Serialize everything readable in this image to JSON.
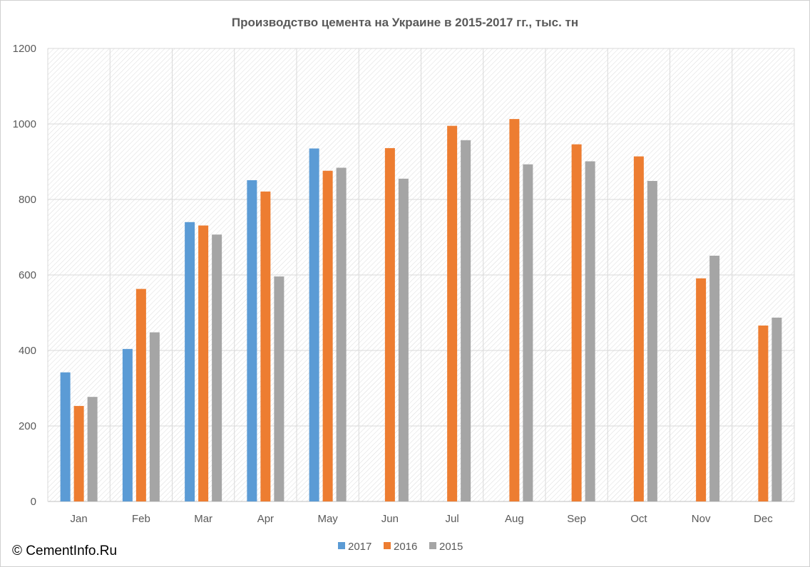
{
  "chart_data": {
    "type": "bar",
    "title": "Производство цемента на Украине в 2015-2017 гг., тыс. тн",
    "xlabel": "",
    "ylabel": "",
    "categories": [
      "Jan",
      "Feb",
      "Mar",
      "Apr",
      "May",
      "Jun",
      "Jul",
      "Aug",
      "Sep",
      "Oct",
      "Nov",
      "Dec"
    ],
    "ylim": [
      0,
      1200
    ],
    "yticks": [
      0,
      200,
      400,
      600,
      800,
      1000,
      1200
    ],
    "grid": true,
    "legend_position": "bottom",
    "series": [
      {
        "name": "2017",
        "color": "#5b9bd5",
        "values": [
          342,
          404,
          740,
          851,
          935,
          null,
          null,
          null,
          null,
          null,
          null,
          null
        ]
      },
      {
        "name": "2016",
        "color": "#ed7d31",
        "values": [
          253,
          563,
          731,
          821,
          876,
          936,
          995,
          1013,
          946,
          914,
          591,
          466
        ]
      },
      {
        "name": "2015",
        "color": "#a5a5a5",
        "values": [
          277,
          448,
          707,
          596,
          884,
          855,
          957,
          893,
          901,
          849,
          651,
          487
        ]
      }
    ]
  },
  "credit": "© CementInfo.Ru"
}
